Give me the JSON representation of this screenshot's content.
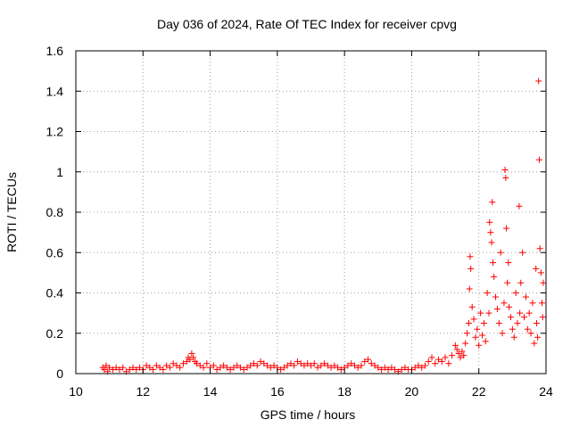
{
  "chart_data": {
    "type": "scatter",
    "title": "Day 036 of 2024, Rate Of TEC Index for receiver cpvg",
    "xlabel": "GPS time / hours",
    "ylabel": "ROTI / TECUs",
    "xlim": [
      10,
      24
    ],
    "ylim": [
      0,
      1.6
    ],
    "xticks": [
      10,
      12,
      14,
      16,
      18,
      20,
      22,
      24
    ],
    "xtick_labels": [
      "10",
      "12",
      "14",
      "16",
      "18",
      "20",
      "22",
      "24"
    ],
    "yticks": [
      0,
      0.2,
      0.4,
      0.6,
      0.8,
      1.0,
      1.2,
      1.4,
      1.6
    ],
    "ytick_labels": [
      "0",
      "0.2",
      "0.4",
      "0.6",
      "0.8",
      "1",
      "1.2",
      "1.4",
      "1.6"
    ],
    "grid": true,
    "marker": "+",
    "series_color": "#ff0000",
    "series": [
      {
        "name": "ROTI",
        "points": [
          [
            10.8,
            0.03
          ],
          [
            10.85,
            0.02
          ],
          [
            10.9,
            0.04
          ],
          [
            10.95,
            0.01
          ],
          [
            11.0,
            0.03
          ],
          [
            11.1,
            0.02
          ],
          [
            11.2,
            0.03
          ],
          [
            11.3,
            0.02
          ],
          [
            11.4,
            0.03
          ],
          [
            11.5,
            0.01
          ],
          [
            11.6,
            0.02
          ],
          [
            11.7,
            0.03
          ],
          [
            11.8,
            0.02
          ],
          [
            11.9,
            0.03
          ],
          [
            12.0,
            0.02
          ],
          [
            12.1,
            0.04
          ],
          [
            12.2,
            0.03
          ],
          [
            12.3,
            0.02
          ],
          [
            12.4,
            0.04
          ],
          [
            12.5,
            0.03
          ],
          [
            12.6,
            0.02
          ],
          [
            12.7,
            0.04
          ],
          [
            12.8,
            0.03
          ],
          [
            12.9,
            0.05
          ],
          [
            13.0,
            0.04
          ],
          [
            13.1,
            0.03
          ],
          [
            13.2,
            0.05
          ],
          [
            13.3,
            0.06
          ],
          [
            13.35,
            0.08
          ],
          [
            13.4,
            0.07
          ],
          [
            13.45,
            0.1
          ],
          [
            13.5,
            0.08
          ],
          [
            13.55,
            0.06
          ],
          [
            13.6,
            0.05
          ],
          [
            13.7,
            0.04
          ],
          [
            13.8,
            0.03
          ],
          [
            13.9,
            0.05
          ],
          [
            14.0,
            0.03
          ],
          [
            14.1,
            0.04
          ],
          [
            14.2,
            0.02
          ],
          [
            14.3,
            0.03
          ],
          [
            14.4,
            0.04
          ],
          [
            14.5,
            0.03
          ],
          [
            14.6,
            0.02
          ],
          [
            14.7,
            0.03
          ],
          [
            14.8,
            0.04
          ],
          [
            14.9,
            0.03
          ],
          [
            15.0,
            0.02
          ],
          [
            15.1,
            0.03
          ],
          [
            15.2,
            0.04
          ],
          [
            15.3,
            0.05
          ],
          [
            15.4,
            0.04
          ],
          [
            15.5,
            0.06
          ],
          [
            15.6,
            0.05
          ],
          [
            15.7,
            0.04
          ],
          [
            15.8,
            0.03
          ],
          [
            15.9,
            0.04
          ],
          [
            16.0,
            0.03
          ],
          [
            16.1,
            0.02
          ],
          [
            16.2,
            0.03
          ],
          [
            16.3,
            0.04
          ],
          [
            16.4,
            0.05
          ],
          [
            16.5,
            0.04
          ],
          [
            16.6,
            0.06
          ],
          [
            16.7,
            0.05
          ],
          [
            16.8,
            0.04
          ],
          [
            16.9,
            0.05
          ],
          [
            17.0,
            0.04
          ],
          [
            17.1,
            0.05
          ],
          [
            17.2,
            0.03
          ],
          [
            17.3,
            0.04
          ],
          [
            17.4,
            0.05
          ],
          [
            17.5,
            0.04
          ],
          [
            17.6,
            0.03
          ],
          [
            17.7,
            0.04
          ],
          [
            17.8,
            0.03
          ],
          [
            17.9,
            0.02
          ],
          [
            18.0,
            0.03
          ],
          [
            18.1,
            0.04
          ],
          [
            18.2,
            0.05
          ],
          [
            18.3,
            0.04
          ],
          [
            18.4,
            0.03
          ],
          [
            18.5,
            0.04
          ],
          [
            18.6,
            0.06
          ],
          [
            18.7,
            0.07
          ],
          [
            18.8,
            0.05
          ],
          [
            18.9,
            0.04
          ],
          [
            19.0,
            0.03
          ],
          [
            19.1,
            0.02
          ],
          [
            19.2,
            0.03
          ],
          [
            19.3,
            0.02
          ],
          [
            19.4,
            0.03
          ],
          [
            19.5,
            0.02
          ],
          [
            19.6,
            0.01
          ],
          [
            19.7,
            0.02
          ],
          [
            19.8,
            0.03
          ],
          [
            19.9,
            0.02
          ],
          [
            20.0,
            0.02
          ],
          [
            20.1,
            0.03
          ],
          [
            20.2,
            0.04
          ],
          [
            20.3,
            0.03
          ],
          [
            20.4,
            0.04
          ],
          [
            20.5,
            0.06
          ],
          [
            20.6,
            0.08
          ],
          [
            20.7,
            0.05
          ],
          [
            20.8,
            0.07
          ],
          [
            20.9,
            0.06
          ],
          [
            21.0,
            0.08
          ],
          [
            21.1,
            0.05
          ],
          [
            21.2,
            0.09
          ],
          [
            21.3,
            0.14
          ],
          [
            21.35,
            0.12
          ],
          [
            21.4,
            0.1
          ],
          [
            21.45,
            0.08
          ],
          [
            21.5,
            0.11
          ],
          [
            21.55,
            0.09
          ],
          [
            21.6,
            0.15
          ],
          [
            21.65,
            0.2
          ],
          [
            21.7,
            0.25
          ],
          [
            21.72,
            0.42
          ],
          [
            21.74,
            0.58
          ],
          [
            21.76,
            0.52
          ],
          [
            21.8,
            0.33
          ],
          [
            21.85,
            0.27
          ],
          [
            21.9,
            0.18
          ],
          [
            21.95,
            0.22
          ],
          [
            22.0,
            0.14
          ],
          [
            22.05,
            0.3
          ],
          [
            22.1,
            0.19
          ],
          [
            22.15,
            0.25
          ],
          [
            22.2,
            0.16
          ],
          [
            22.25,
            0.4
          ],
          [
            22.3,
            0.3
          ],
          [
            22.32,
            0.75
          ],
          [
            22.35,
            0.7
          ],
          [
            22.38,
            0.65
          ],
          [
            22.4,
            0.85
          ],
          [
            22.42,
            0.55
          ],
          [
            22.45,
            0.48
          ],
          [
            22.5,
            0.38
          ],
          [
            22.55,
            0.32
          ],
          [
            22.6,
            0.25
          ],
          [
            22.65,
            0.6
          ],
          [
            22.7,
            0.2
          ],
          [
            22.75,
            0.35
          ],
          [
            22.78,
            1.01
          ],
          [
            22.8,
            0.97
          ],
          [
            22.82,
            0.72
          ],
          [
            22.85,
            0.45
          ],
          [
            22.88,
            0.55
          ],
          [
            22.9,
            0.33
          ],
          [
            22.95,
            0.28
          ],
          [
            23.0,
            0.22
          ],
          [
            23.05,
            0.18
          ],
          [
            23.1,
            0.4
          ],
          [
            23.15,
            0.25
          ],
          [
            23.2,
            0.83
          ],
          [
            23.22,
            0.3
          ],
          [
            23.25,
            0.45
          ],
          [
            23.3,
            0.6
          ],
          [
            23.35,
            0.28
          ],
          [
            23.4,
            0.38
          ],
          [
            23.45,
            0.22
          ],
          [
            23.5,
            0.3
          ],
          [
            23.55,
            0.2
          ],
          [
            23.6,
            0.35
          ],
          [
            23.65,
            0.15
          ],
          [
            23.7,
            0.52
          ],
          [
            23.72,
            0.25
          ],
          [
            23.75,
            0.18
          ],
          [
            23.78,
            1.45
          ],
          [
            23.8,
            1.06
          ],
          [
            23.82,
            0.62
          ],
          [
            23.85,
            0.5
          ],
          [
            23.88,
            0.35
          ],
          [
            23.9,
            0.28
          ],
          [
            23.92,
            0.45
          ]
        ]
      }
    ]
  }
}
